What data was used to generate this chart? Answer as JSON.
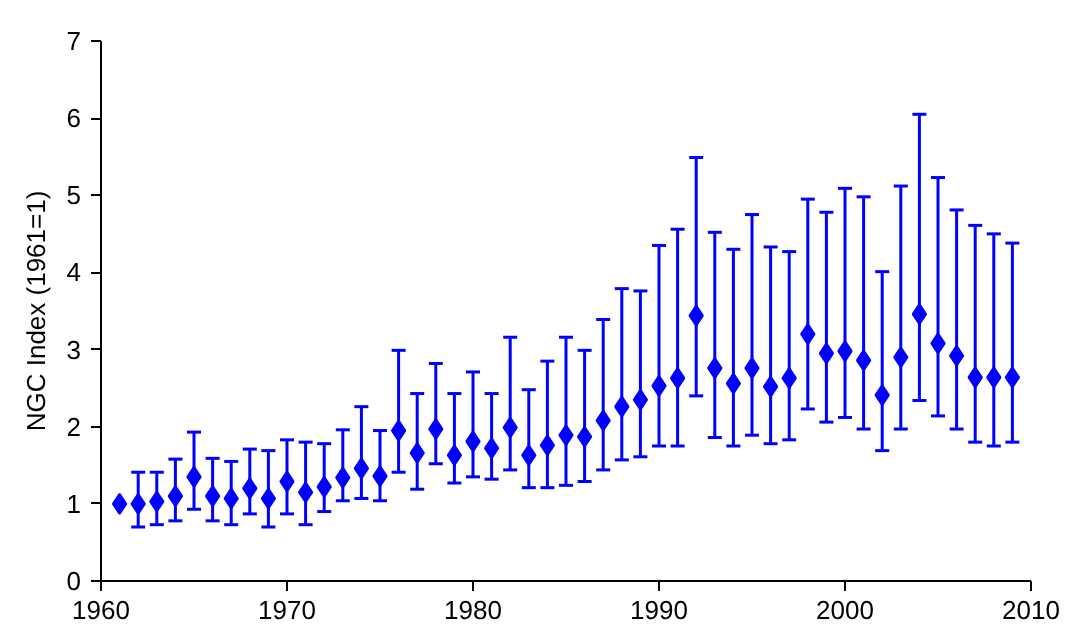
{
  "chart_data": {
    "type": "scatter",
    "ylabel": "NGC Index (1961=1)",
    "marker": "diamond",
    "x": [
      1961,
      1962,
      1963,
      1964,
      1965,
      1966,
      1967,
      1968,
      1969,
      1970,
      1971,
      1972,
      1973,
      1974,
      1975,
      1976,
      1977,
      1978,
      1979,
      1980,
      1981,
      1982,
      1983,
      1984,
      1985,
      1986,
      1987,
      1988,
      1989,
      1990,
      1991,
      1992,
      1993,
      1994,
      1995,
      1996,
      1997,
      1998,
      1999,
      2000,
      2001,
      2002,
      2003,
      2004,
      2005,
      2006,
      2007,
      2008,
      2009
    ],
    "series": [
      {
        "color": "#0000ff",
        "values": [
          1.0,
          1.0,
          1.03,
          1.1,
          1.35,
          1.1,
          1.07,
          1.2,
          1.07,
          1.29,
          1.15,
          1.22,
          1.34,
          1.46,
          1.36,
          1.95,
          1.66,
          1.97,
          1.63,
          1.81,
          1.72,
          1.99,
          1.63,
          1.76,
          1.89,
          1.87,
          2.08,
          2.26,
          2.35,
          2.53,
          2.63,
          3.44,
          2.76,
          2.56,
          2.76,
          2.52,
          2.63,
          3.2,
          2.95,
          2.98,
          2.86,
          2.41,
          2.9,
          3.46,
          3.08,
          2.92,
          2.64,
          2.64,
          2.64
        ],
        "errors": [
          null,
          [
            0.7,
            1.41
          ],
          [
            0.73,
            1.41
          ],
          [
            0.78,
            1.58
          ],
          [
            0.93,
            1.93
          ],
          [
            0.78,
            1.59
          ],
          [
            0.73,
            1.55
          ],
          [
            0.87,
            1.71
          ],
          [
            0.7,
            1.69
          ],
          [
            0.87,
            1.83
          ],
          [
            0.73,
            1.8
          ],
          [
            0.9,
            1.78
          ],
          [
            1.04,
            1.96
          ],
          [
            1.07,
            2.26
          ],
          [
            1.04,
            1.95
          ],
          [
            1.41,
            2.99
          ],
          [
            1.19,
            2.43
          ],
          [
            1.52,
            2.82
          ],
          [
            1.27,
            2.43
          ],
          [
            1.35,
            2.71
          ],
          [
            1.32,
            2.43
          ],
          [
            1.44,
            3.16
          ],
          [
            1.21,
            2.48
          ],
          [
            1.21,
            2.85
          ],
          [
            1.24,
            3.16
          ],
          [
            1.29,
            2.99
          ],
          [
            1.44,
            3.39
          ],
          [
            1.57,
            3.79
          ],
          [
            1.61,
            3.76
          ],
          [
            1.75,
            4.35
          ],
          [
            1.75,
            4.56
          ],
          [
            2.4,
            5.49
          ],
          [
            1.86,
            4.52
          ],
          [
            1.75,
            4.3
          ],
          [
            1.89,
            4.75
          ],
          [
            1.78,
            4.33
          ],
          [
            1.83,
            4.27
          ],
          [
            2.23,
            4.95
          ],
          [
            2.06,
            4.78
          ],
          [
            2.12,
            5.09
          ],
          [
            1.97,
            4.98
          ],
          [
            1.69,
            4.01
          ],
          [
            1.97,
            5.12
          ],
          [
            2.34,
            6.05
          ],
          [
            2.14,
            5.23
          ],
          [
            1.97,
            4.81
          ],
          [
            1.8,
            4.61
          ],
          [
            1.75,
            4.5
          ],
          [
            1.8,
            4.38
          ]
        ]
      }
    ],
    "xlim": [
      1960,
      2010
    ],
    "xticks": [
      1960,
      1970,
      1980,
      1990,
      2000,
      2010
    ],
    "ylim": [
      0,
      7
    ],
    "yticks": [
      0,
      1,
      2,
      3,
      4,
      5,
      6,
      7
    ]
  }
}
